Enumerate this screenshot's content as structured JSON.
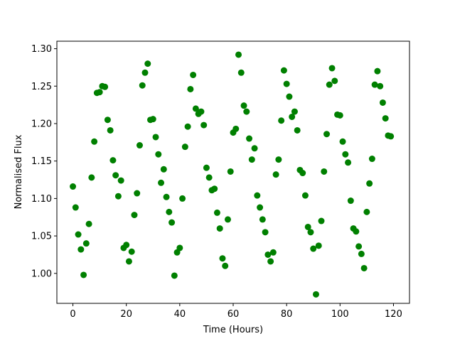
{
  "chart_data": {
    "type": "scatter",
    "title": "",
    "xlabel": "Time (Hours)",
    "ylabel": "Normalised Flux",
    "xlim": [
      -6,
      126
    ],
    "ylim": [
      0.96,
      1.31
    ],
    "xticks": [
      0,
      20,
      40,
      60,
      80,
      100,
      120
    ],
    "yticks": [
      1.0,
      1.05,
      1.1,
      1.15,
      1.2,
      1.25,
      1.3
    ],
    "ytick_labels": [
      "1.00",
      "1.05",
      "1.10",
      "1.15",
      "1.20",
      "1.25",
      "1.30"
    ],
    "grid": false,
    "legend": "none",
    "marker_color": "#008000",
    "series": [
      {
        "points": [
          [
            0,
            1.116
          ],
          [
            1,
            1.088
          ],
          [
            2,
            1.052
          ],
          [
            3,
            1.032
          ],
          [
            4,
            0.998
          ],
          [
            5,
            1.04
          ],
          [
            6,
            1.066
          ],
          [
            7,
            1.128
          ],
          [
            8,
            1.176
          ],
          [
            9,
            1.241
          ],
          [
            10,
            1.242
          ],
          [
            11,
            1.25
          ],
          [
            12,
            1.249
          ],
          [
            13,
            1.205
          ],
          [
            14,
            1.191
          ],
          [
            15,
            1.151
          ],
          [
            16,
            1.131
          ],
          [
            17,
            1.103
          ],
          [
            18,
            1.124
          ],
          [
            19,
            1.034
          ],
          [
            20,
            1.038
          ],
          [
            21,
            1.016
          ],
          [
            22,
            1.029
          ],
          [
            23,
            1.078
          ],
          [
            24,
            1.107
          ],
          [
            25,
            1.171
          ],
          [
            26,
            1.251
          ],
          [
            27,
            1.268
          ],
          [
            28,
            1.28
          ],
          [
            29,
            1.205
          ],
          [
            30,
            1.206
          ],
          [
            31,
            1.182
          ],
          [
            32,
            1.159
          ],
          [
            33,
            1.121
          ],
          [
            34,
            1.139
          ],
          [
            35,
            1.102
          ],
          [
            36,
            1.082
          ],
          [
            37,
            1.068
          ],
          [
            38,
            0.997
          ],
          [
            39,
            1.028
          ],
          [
            40,
            1.034
          ],
          [
            41,
            1.1
          ],
          [
            42,
            1.169
          ],
          [
            43,
            1.196
          ],
          [
            44,
            1.246
          ],
          [
            45,
            1.265
          ],
          [
            46,
            1.22
          ],
          [
            47,
            1.213
          ],
          [
            48,
            1.216
          ],
          [
            49,
            1.198
          ],
          [
            50,
            1.141
          ],
          [
            51,
            1.128
          ],
          [
            52,
            1.111
          ],
          [
            53,
            1.113
          ],
          [
            54,
            1.081
          ],
          [
            55,
            1.06
          ],
          [
            56,
            1.02
          ],
          [
            57,
            1.01
          ],
          [
            58,
            1.072
          ],
          [
            59,
            1.136
          ],
          [
            60,
            1.188
          ],
          [
            61,
            1.193
          ],
          [
            62,
            1.292
          ],
          [
            63,
            1.268
          ],
          [
            64,
            1.224
          ],
          [
            65,
            1.216
          ],
          [
            66,
            1.18
          ],
          [
            67,
            1.152
          ],
          [
            68,
            1.167
          ],
          [
            69,
            1.104
          ],
          [
            70,
            1.088
          ],
          [
            71,
            1.072
          ],
          [
            72,
            1.055
          ],
          [
            73,
            1.025
          ],
          [
            74,
            1.016
          ],
          [
            75,
            1.028
          ],
          [
            76,
            1.132
          ],
          [
            77,
            1.152
          ],
          [
            78,
            1.204
          ],
          [
            79,
            1.271
          ],
          [
            80,
            1.253
          ],
          [
            81,
            1.236
          ],
          [
            82,
            1.209
          ],
          [
            83,
            1.216
          ],
          [
            84,
            1.191
          ],
          [
            85,
            1.138
          ],
          [
            86,
            1.134
          ],
          [
            87,
            1.104
          ],
          [
            88,
            1.062
          ],
          [
            89,
            1.055
          ],
          [
            90,
            1.033
          ],
          [
            91,
            0.972
          ],
          [
            92,
            1.037
          ],
          [
            93,
            1.07
          ],
          [
            94,
            1.136
          ],
          [
            95,
            1.186
          ],
          [
            96,
            1.252
          ],
          [
            97,
            1.274
          ],
          [
            98,
            1.257
          ],
          [
            99,
            1.212
          ],
          [
            100,
            1.211
          ],
          [
            101,
            1.176
          ],
          [
            102,
            1.159
          ],
          [
            103,
            1.148
          ],
          [
            104,
            1.097
          ],
          [
            105,
            1.06
          ],
          [
            106,
            1.056
          ],
          [
            107,
            1.036
          ],
          [
            108,
            1.026
          ],
          [
            109,
            1.007
          ],
          [
            110,
            1.082
          ],
          [
            111,
            1.12
          ],
          [
            112,
            1.153
          ],
          [
            113,
            1.252
          ],
          [
            114,
            1.27
          ],
          [
            115,
            1.25
          ],
          [
            116,
            1.228
          ],
          [
            117,
            1.207
          ],
          [
            118,
            1.184
          ],
          [
            119,
            1.183
          ]
        ]
      }
    ]
  }
}
